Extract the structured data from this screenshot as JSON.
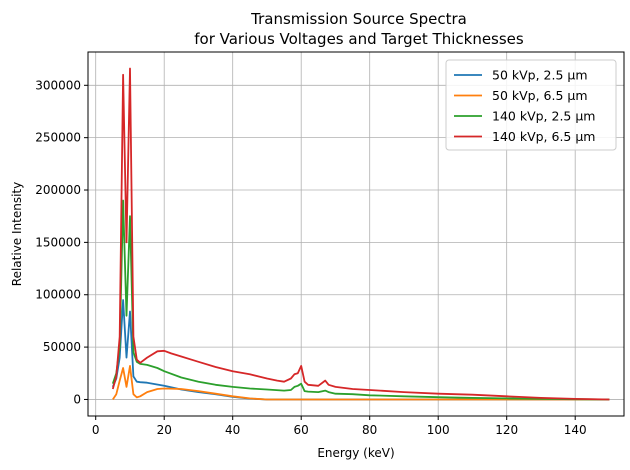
{
  "chart_data": {
    "type": "line",
    "title": "Transmission Source Spectra",
    "subtitle": "for Various Voltages and Target Thicknesses",
    "xlabel": "Energy (keV)",
    "ylabel": "Relative Intensity",
    "xlim": [
      -2.25,
      154.25
    ],
    "ylim": [
      -15800,
      331800
    ],
    "xticks": [
      0,
      20,
      40,
      60,
      80,
      100,
      120,
      140
    ],
    "yticks": [
      0,
      50000,
      100000,
      150000,
      200000,
      250000,
      300000
    ],
    "grid": true,
    "legend_position": "top-right",
    "series": [
      {
        "name": "50 kVp, 2.5 µm",
        "color": "#1f77b4",
        "x": [
          5,
          6,
          7,
          8,
          9,
          10,
          11,
          12,
          13,
          15,
          20,
          25,
          30,
          35,
          40,
          45,
          50,
          60,
          80,
          100,
          120,
          130,
          140,
          150
        ],
        "y": [
          12000,
          20000,
          40000,
          95000,
          40000,
          84000,
          22000,
          17000,
          16500,
          16000,
          13000,
          9500,
          7000,
          5000,
          2500,
          800,
          0,
          0,
          0,
          0,
          0,
          0,
          0,
          0
        ]
      },
      {
        "name": "50 kVp, 6.5 µm",
        "color": "#ff7f0e",
        "x": [
          5,
          6,
          7,
          8,
          9,
          10,
          11,
          12,
          13,
          15,
          18,
          20,
          25,
          30,
          35,
          40,
          45,
          50,
          60,
          80,
          100,
          120,
          130,
          140,
          150
        ],
        "y": [
          0,
          5000,
          18000,
          30000,
          12000,
          32000,
          5000,
          2000,
          3000,
          7000,
          10000,
          10500,
          10000,
          8000,
          5500,
          3000,
          1000,
          0,
          0,
          0,
          0,
          0,
          0,
          0,
          0
        ]
      },
      {
        "name": "140 kVp, 2.5 µm",
        "color": "#2ca02c",
        "x": [
          5,
          6,
          7,
          8,
          9,
          10,
          11,
          12,
          13,
          15,
          18,
          20,
          25,
          30,
          35,
          40,
          45,
          50,
          55,
          57,
          58,
          59,
          60,
          61,
          62,
          65,
          67,
          68,
          70,
          75,
          80,
          90,
          100,
          110,
          120,
          130,
          140,
          150
        ],
        "y": [
          15000,
          25000,
          50000,
          190000,
          80000,
          175000,
          45000,
          36000,
          34000,
          33000,
          30000,
          27000,
          21000,
          17000,
          14000,
          12000,
          10500,
          9500,
          8500,
          9000,
          12000,
          13000,
          15000,
          8000,
          7500,
          7000,
          8500,
          7000,
          5500,
          5000,
          4000,
          3000,
          2200,
          1500,
          1000,
          500,
          200,
          0
        ]
      },
      {
        "name": "140 kVp, 6.5 µm",
        "color": "#d62728",
        "x": [
          5,
          6,
          7,
          8,
          9,
          10,
          11,
          12,
          13,
          15,
          18,
          20,
          22,
          25,
          28,
          30,
          35,
          40,
          45,
          50,
          53,
          55,
          57,
          58,
          59,
          60,
          61,
          62,
          65,
          67,
          68,
          70,
          75,
          80,
          90,
          100,
          110,
          120,
          130,
          140,
          150
        ],
        "y": [
          10000,
          22000,
          60000,
          310000,
          150000,
          316000,
          60000,
          38000,
          35000,
          40000,
          46000,
          46500,
          44000,
          41000,
          38000,
          36000,
          31000,
          27000,
          24000,
          20000,
          18000,
          17000,
          20000,
          24000,
          25000,
          32000,
          17000,
          14000,
          13000,
          18000,
          14000,
          12000,
          10000,
          9000,
          7000,
          5500,
          4500,
          3000,
          1500,
          500,
          0
        ]
      }
    ]
  }
}
